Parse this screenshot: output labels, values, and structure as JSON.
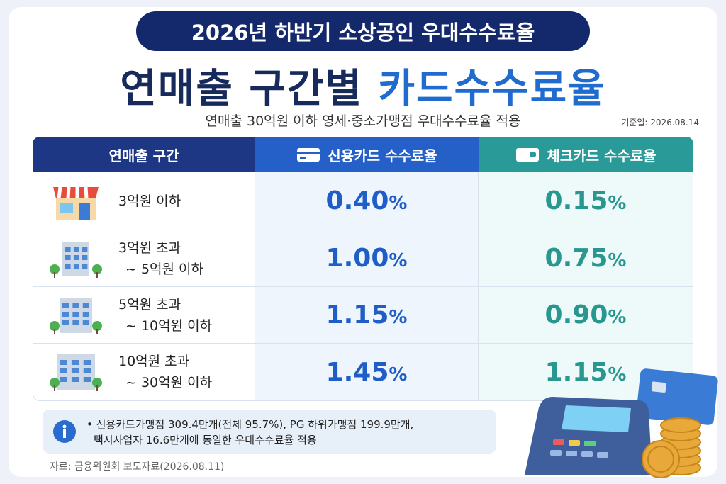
{
  "header": {
    "badge": "2026년 하반기 소상공인 우대수수료율",
    "title_part1": "연매출 구간별",
    "title_part2": "카드수수료율",
    "subtitle": "연매출 30억원 이하 영세·중소가맹점 우대수수료율 적용",
    "date": "기준일: 2026.08.14"
  },
  "table": {
    "columns": [
      "연매출 구간",
      "신용카드 수수료율",
      "체크카드 수수료율"
    ],
    "rows": [
      {
        "range": [
          "3억원 이하"
        ],
        "credit": "0.40%",
        "check": "0.15%"
      },
      {
        "range": [
          "3억원 초과",
          "~ 5억원 이하"
        ],
        "credit": "1.00%",
        "check": "0.75%"
      },
      {
        "range": [
          "5억원 초과",
          "~ 10억원 이하"
        ],
        "credit": "1.15%",
        "check": "0.90%"
      },
      {
        "range": [
          "10억원 초과",
          "~ 30억원 이하"
        ],
        "credit": "1.45%",
        "check": "1.15%"
      }
    ]
  },
  "note": {
    "lines": [
      "• 신용카드가맹점 309.4만개(전체 95.7%), PG 하위가맹점 199.9만개,",
      "택시사업자 16.6만개에 동일한 우대수수료율 적용"
    ]
  },
  "source": "자료: 금융위원회 보도자료(2026.08.11)"
}
